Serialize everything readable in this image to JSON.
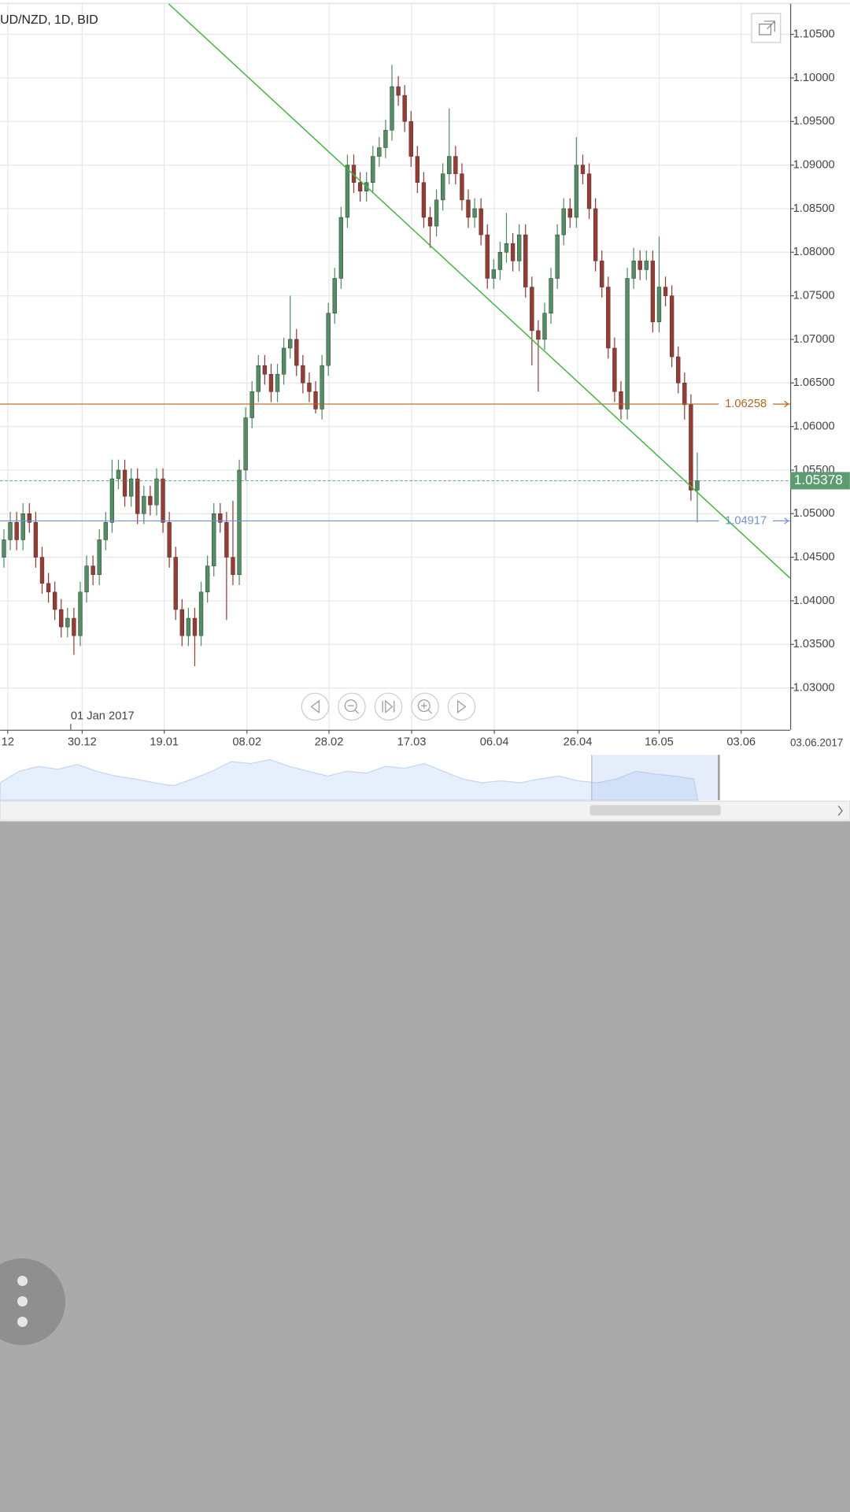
{
  "chart_data": {
    "type": "candlestick",
    "title": "UD/NZD, 1D, BID",
    "series": {
      "open": [
        1.045,
        1.047,
        1.049,
        1.047,
        1.05,
        1.049,
        1.045,
        1.042,
        1.041,
        1.039,
        1.037,
        1.038,
        1.036,
        1.041,
        1.044,
        1.043,
        1.047,
        1.049,
        1.054,
        1.055,
        1.052,
        1.054,
        1.05,
        1.052,
        1.051,
        1.054,
        1.049,
        1.045,
        1.039,
        1.036,
        1.038,
        1.036,
        1.041,
        1.044,
        1.05,
        1.049,
        1.045,
        1.043,
        1.055,
        1.061,
        1.064,
        1.067,
        1.066,
        1.064,
        1.066,
        1.069,
        1.07,
        1.067,
        1.065,
        1.064,
        1.062,
        1.067,
        1.073,
        1.077,
        1.084,
        1.09,
        1.088,
        1.087,
        1.088,
        1.091,
        1.092,
        1.094,
        1.099,
        1.098,
        1.095,
        1.091,
        1.088,
        1.084,
        1.083,
        1.086,
        1.089,
        1.091,
        1.089,
        1.086,
        1.084,
        1.085,
        1.082,
        1.077,
        1.078,
        1.08,
        1.081,
        1.079,
        1.082,
        1.076,
        1.071,
        1.07,
        1.073,
        1.077,
        1.082,
        1.085,
        1.084,
        1.09,
        1.089,
        1.085,
        1.079,
        1.076,
        1.069,
        1.064,
        1.062,
        1.077,
        1.079,
        1.078,
        1.079,
        1.072,
        1.076,
        1.075,
        1.068,
        1.065,
        1.0625,
        1.0527
      ],
      "high": [
        1.0482,
        1.0502,
        1.0502,
        1.0512,
        1.0512,
        1.0502,
        1.0462,
        1.0432,
        1.0422,
        1.0402,
        1.0392,
        1.0392,
        1.0422,
        1.0452,
        1.0452,
        1.0482,
        1.0502,
        1.0562,
        1.0562,
        1.0562,
        1.0552,
        1.0552,
        1.0532,
        1.0532,
        1.0552,
        1.0552,
        1.0502,
        1.0462,
        1.0402,
        1.0392,
        1.0392,
        1.0422,
        1.0452,
        1.0512,
        1.0512,
        1.0502,
        1.0515,
        1.0562,
        1.0622,
        1.0652,
        1.0682,
        1.0682,
        1.0672,
        1.0672,
        1.0702,
        1.075,
        1.0712,
        1.0682,
        1.0662,
        1.0652,
        1.0682,
        1.0742,
        1.0782,
        1.0852,
        1.0912,
        1.0912,
        1.0892,
        1.0892,
        1.0922,
        1.0932,
        1.0952,
        1.1015,
        1.1002,
        1.0992,
        1.0962,
        1.0922,
        1.0892,
        1.0852,
        1.0872,
        1.0902,
        1.0965,
        1.0922,
        1.0902,
        1.0872,
        1.0862,
        1.0862,
        1.0832,
        1.0792,
        1.0812,
        1.0845,
        1.0822,
        1.0832,
        1.0832,
        1.0772,
        1.0722,
        1.0742,
        1.0782,
        1.0832,
        1.0862,
        1.0862,
        1.0932,
        1.0912,
        1.0902,
        1.0862,
        1.0802,
        1.0772,
        1.0702,
        1.0652,
        1.0782,
        1.0805,
        1.0802,
        1.0802,
        1.0802,
        1.0818,
        1.0772,
        1.0762,
        1.0692,
        1.0662,
        1.0637,
        1.057
      ],
      "low": [
        1.0438,
        1.0458,
        1.0458,
        1.0458,
        1.0478,
        1.0438,
        1.0408,
        1.0398,
        1.0378,
        1.0358,
        1.0358,
        1.0338,
        1.0348,
        1.0398,
        1.0418,
        1.0418,
        1.0458,
        1.0478,
        1.0528,
        1.0508,
        1.0508,
        1.0488,
        1.0488,
        1.0498,
        1.0498,
        1.0478,
        1.0438,
        1.0378,
        1.0348,
        1.0348,
        1.0325,
        1.0348,
        1.0398,
        1.0428,
        1.0478,
        1.0378,
        1.0418,
        1.0418,
        1.0538,
        1.0598,
        1.0628,
        1.0648,
        1.0628,
        1.0628,
        1.0648,
        1.0678,
        1.0658,
        1.0638,
        1.0628,
        1.0615,
        1.0608,
        1.0658,
        1.0718,
        1.0758,
        1.0828,
        1.0868,
        1.0858,
        1.0858,
        1.0868,
        1.0898,
        1.0908,
        1.0928,
        1.0968,
        1.0938,
        1.0898,
        1.0868,
        1.0828,
        1.0805,
        1.0818,
        1.0848,
        1.0878,
        1.0878,
        1.0848,
        1.0828,
        1.0828,
        1.0808,
        1.0758,
        1.0758,
        1.0768,
        1.0788,
        1.0778,
        1.0778,
        1.0748,
        1.067,
        1.064,
        1.0688,
        1.0718,
        1.0758,
        1.0808,
        1.0828,
        1.0828,
        1.0878,
        1.0838,
        1.0778,
        1.0748,
        1.0678,
        1.0628,
        1.0608,
        1.0608,
        1.0758,
        1.0768,
        1.0768,
        1.0708,
        1.0708,
        1.0738,
        1.0668,
        1.0638,
        1.0608,
        1.0515,
        1.049
      ],
      "close": [
        1.047,
        1.049,
        1.047,
        1.05,
        1.049,
        1.045,
        1.042,
        1.041,
        1.039,
        1.037,
        1.038,
        1.036,
        1.041,
        1.044,
        1.043,
        1.047,
        1.049,
        1.054,
        1.055,
        1.052,
        1.054,
        1.05,
        1.052,
        1.051,
        1.054,
        1.049,
        1.045,
        1.039,
        1.036,
        1.038,
        1.036,
        1.041,
        1.044,
        1.05,
        1.049,
        1.045,
        1.043,
        1.055,
        1.061,
        1.064,
        1.067,
        1.066,
        1.064,
        1.066,
        1.069,
        1.07,
        1.067,
        1.065,
        1.064,
        1.062,
        1.067,
        1.073,
        1.077,
        1.084,
        1.09,
        1.088,
        1.087,
        1.088,
        1.091,
        1.092,
        1.094,
        1.099,
        1.098,
        1.095,
        1.091,
        1.088,
        1.084,
        1.083,
        1.086,
        1.089,
        1.091,
        1.089,
        1.086,
        1.084,
        1.085,
        1.082,
        1.077,
        1.078,
        1.08,
        1.081,
        1.079,
        1.082,
        1.076,
        1.071,
        1.07,
        1.073,
        1.077,
        1.082,
        1.085,
        1.084,
        1.09,
        1.089,
        1.085,
        1.079,
        1.076,
        1.069,
        1.064,
        1.062,
        1.077,
        1.079,
        1.078,
        1.079,
        1.072,
        1.076,
        1.075,
        1.068,
        1.065,
        1.0625,
        1.0527,
        1.05378
      ]
    },
    "up_color": "#4f8f62",
    "down_color": "#9c3a32",
    "xlim": [
      -0.6,
      123.6
    ],
    "ylim": [
      1.0252,
      1.1085
    ],
    "xticks": [
      {
        "value": 0.6,
        "label": "12"
      },
      {
        "value": 12.3,
        "label": "30.12"
      },
      {
        "value": 25.2,
        "label": "19.01"
      },
      {
        "value": 38.2,
        "label": "08.02"
      },
      {
        "value": 51.1,
        "label": "28.02"
      },
      {
        "value": 64.1,
        "label": "17.03"
      },
      {
        "value": 77.1,
        "label": "06.04"
      },
      {
        "value": 90.2,
        "label": "26.04"
      },
      {
        "value": 103,
        "label": "16.05"
      },
      {
        "value": 115.9,
        "label": "03.06"
      }
    ],
    "yticks": [
      {
        "value": 1.03,
        "label": "1.03000"
      },
      {
        "value": 1.035,
        "label": "1.03500"
      },
      {
        "value": 1.04,
        "label": "1.04000"
      },
      {
        "value": 1.045,
        "label": "1.04500"
      },
      {
        "value": 1.05,
        "label": "1.05000"
      },
      {
        "value": 1.055,
        "label": "1.05500"
      },
      {
        "value": 1.06,
        "label": "1.06000"
      },
      {
        "value": 1.065,
        "label": "1.06500"
      },
      {
        "value": 1.07,
        "label": "1.07000"
      },
      {
        "value": 1.075,
        "label": "1.07500"
      },
      {
        "value": 1.08,
        "label": "1.08000"
      },
      {
        "value": 1.085,
        "label": "1.08500"
      },
      {
        "value": 1.09,
        "label": "1.09000"
      },
      {
        "value": 1.095,
        "label": "1.09500"
      },
      {
        "value": 1.1,
        "label": "1.10000"
      },
      {
        "value": 1.105,
        "label": "1.10500"
      }
    ],
    "grid": true,
    "levels": [
      {
        "value": 1.06258,
        "color": "#b5651d"
      },
      {
        "value": 1.04917,
        "color": "#6f93d2"
      }
    ],
    "last_price": 1.05378,
    "last_price_color": "#5c9c6e",
    "trendline": {
      "x": [
        25.9,
        123.6
      ],
      "y": [
        1.1085,
        1.0426
      ],
      "color": "#3cb83c"
    },
    "year_marker": {
      "x": 10.5,
      "label": "01 Jan 2017"
    },
    "cursor_date": "03.06.2017"
  }
}
